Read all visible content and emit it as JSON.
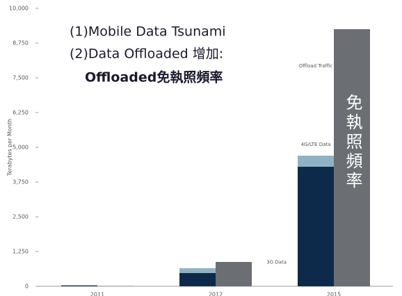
{
  "chart_data": {
    "type": "bar",
    "y_label": "Terabytes per Month",
    "annotations": [
      "(1)Mobile Data Tsunami",
      "(2)Data Offloaded 增加:",
      "Offloaded免執照頻率",
      "免執照頻率"
    ],
    "categories": [
      "2011",
      "2012",
      "2015"
    ],
    "series": [
      {
        "name": "3G Data",
        "color": "#0e2a4a",
        "values": [
          30,
          475,
          4300
        ],
        "stack": "a"
      },
      {
        "name": "4G/LTE Data",
        "color": "#8fb3c4",
        "values": [
          10,
          175,
          400
        ],
        "stack": "a"
      },
      {
        "name": "Offload Traffic",
        "color": "#6b6e73",
        "values": [
          10,
          875,
          9250
        ],
        "stack": "b"
      }
    ],
    "ylim": [
      0,
      10000
    ],
    "yticks": [
      0,
      {
        "value": 1250,
        "label": "1,250"
      },
      {
        "value": 2500,
        "label": "2,500"
      },
      {
        "value": 3750,
        "label": "3,750"
      },
      {
        "value": 5000,
        "label": "5,000"
      },
      {
        "value": 6250,
        "label": "6,250"
      },
      {
        "value": 7500,
        "label": "7,500"
      },
      {
        "value": 8750,
        "label": "8,750"
      },
      {
        "value": 10000,
        "label": "10,000"
      }
    ]
  }
}
